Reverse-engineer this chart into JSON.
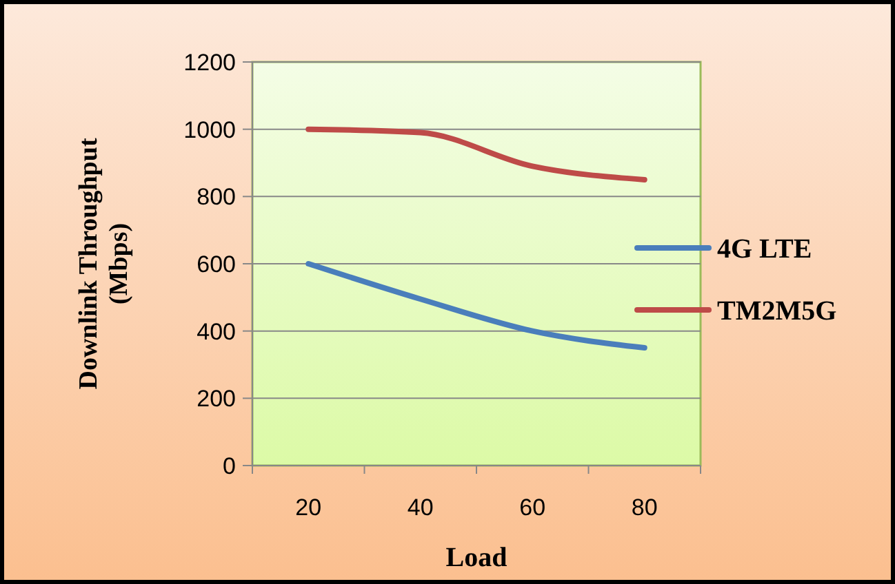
{
  "chart_data": {
    "type": "line",
    "xlabel": "Load",
    "ylabel": "Downlink Throughput (Mbps)",
    "categories": [
      "20",
      "40",
      "60",
      "80"
    ],
    "series": [
      {
        "name": "4G LTE",
        "color": "#4a7ebb",
        "values": [
          600,
          495,
          400,
          350
        ]
      },
      {
        "name": "TM2M5G",
        "color": "#be4b48",
        "values": [
          1000,
          990,
          890,
          850
        ]
      }
    ],
    "ylim": [
      0,
      1200
    ],
    "yticks": [
      0,
      200,
      400,
      600,
      800,
      1000,
      1200
    ],
    "grid": "y",
    "legend": "right",
    "marker": "none",
    "line_style": "solid"
  }
}
